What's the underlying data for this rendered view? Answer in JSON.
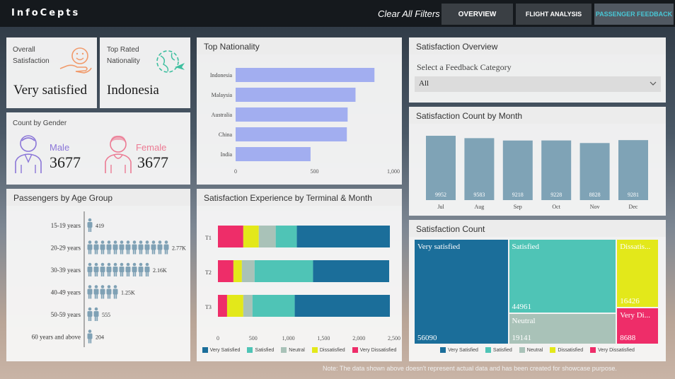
{
  "header": {
    "logo": "InfoCepts",
    "clear_filters": "Clear All Filters",
    "tabs": [
      {
        "label": "OVERVIEW"
      },
      {
        "label": "FLIGHT ANALYSIS"
      },
      {
        "label": "PASSENGER FEEDBACK"
      }
    ]
  },
  "overall": {
    "label_line1": "Overall",
    "label_line2": "Satisfaction",
    "value": "Very satisfied"
  },
  "top_rated": {
    "label_line1": "Top Rated",
    "label_line2": "Nationality",
    "value": "Indonesia"
  },
  "gender": {
    "title": "Count by Gender",
    "male_label": "Male",
    "male_value": "3677",
    "female_label": "Female",
    "female_value": "3677"
  },
  "top_nationality": {
    "title": "Top Nationality"
  },
  "age_group": {
    "title": "Passengers by Age Group"
  },
  "terminal": {
    "title": "Satisfaction Experience by Terminal & Month"
  },
  "overview": {
    "title": "Satisfaction Overview",
    "select_label": "Select a Feedback Category",
    "select_value": "All"
  },
  "by_month": {
    "title": "Satisfaction Count by Month"
  },
  "sat_count": {
    "title": "Satisfaction Count"
  },
  "legend": [
    "Very Satisfied",
    "Satisfied",
    "Neutral",
    "Dissatisfied",
    "Very Dissatisfied"
  ],
  "colors": {
    "very_satisfied": "#1b6e9a",
    "satisfied": "#4fc4b6",
    "neutral": "#a9c2b8",
    "dissatisfied": "#e3e81a",
    "very_dissatisfied": "#ee2d69",
    "nationality_bar": "#a2aef0",
    "month_bar": "#7fa3b6",
    "age_icon": "#7fa1b5"
  },
  "footer": {
    "note": "Note: The data shown above doesn't represent actual data and has been created for showcase purpose."
  },
  "chart_data": [
    {
      "type": "bar",
      "orientation": "horizontal",
      "title": "Top Nationality",
      "categories": [
        "Indonesia",
        "Malaysia",
        "Australia",
        "China",
        "India"
      ],
      "values": [
        880,
        760,
        710,
        705,
        475
      ],
      "xlim": [
        0,
        1000
      ],
      "xticks": [
        "0",
        "500",
        "1,000"
      ]
    },
    {
      "type": "bar",
      "title": "Passengers by Age Group",
      "categories": [
        "15-19 years",
        "20-29 years",
        "30-39 years",
        "40-49 years",
        "50-59 years",
        "60 years and above"
      ],
      "labels": [
        "419",
        "2.77K",
        "2.16K",
        "1.25K",
        "555",
        "204"
      ],
      "icon_counts": [
        1,
        13,
        10,
        5,
        2,
        1
      ]
    },
    {
      "type": "bar",
      "stacked": true,
      "orientation": "horizontal",
      "title": "Satisfaction Experience by Terminal & Month",
      "categories": [
        "T1",
        "T2",
        "T3"
      ],
      "series": [
        {
          "name": "Very Satisfied",
          "values": [
            1320,
            1080,
            1350
          ]
        },
        {
          "name": "Satisfied",
          "values": [
            300,
            830,
            600
          ]
        },
        {
          "name": "Neutral",
          "values": [
            240,
            180,
            130
          ]
        },
        {
          "name": "Dissatisfied",
          "values": [
            220,
            120,
            230
          ]
        },
        {
          "name": "Very Dissatisfied",
          "values": [
            360,
            220,
            130
          ]
        }
      ],
      "xlim": [
        0,
        2500
      ],
      "xticks": [
        "0",
        "500",
        "1,000",
        "1,500",
        "2,000",
        "2,500"
      ]
    },
    {
      "type": "bar",
      "title": "Satisfaction Count by Month",
      "categories": [
        "Jul",
        "Aug",
        "Sep",
        "Oct",
        "Nov",
        "Dec"
      ],
      "values": [
        9952,
        9583,
        9218,
        9228,
        8828,
        9281
      ],
      "ylim": [
        0,
        10500
      ]
    },
    {
      "type": "treemap",
      "title": "Satisfaction Count",
      "items": [
        {
          "name": "Very satisfied",
          "value": 56090
        },
        {
          "name": "Satisfied",
          "value": 44961
        },
        {
          "name": "Neutral",
          "value": 19141
        },
        {
          "name": "Dissatis...",
          "value": 16426
        },
        {
          "name": "Very Di...",
          "value": 8688
        }
      ]
    }
  ]
}
